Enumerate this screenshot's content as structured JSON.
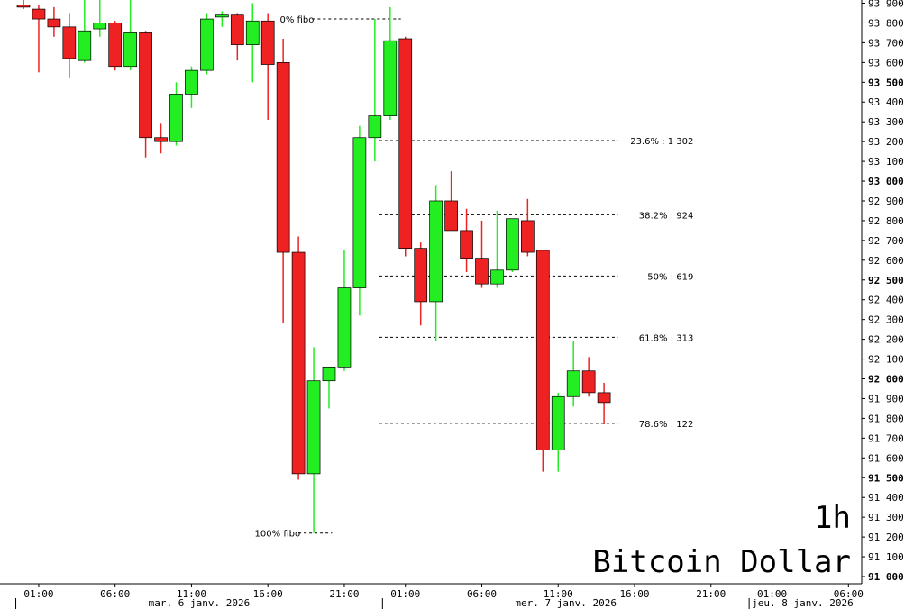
{
  "chart_data": {
    "type": "candlestick",
    "title": "Bitcoin Dollar",
    "timeframe": "1h",
    "colors": {
      "up": "#22ee22",
      "down": "#ee2222",
      "outline": "#000000"
    },
    "ylim": [
      91000,
      93900
    ],
    "grid": false,
    "y_ticks": [
      {
        "v": 93900,
        "label": "93 900",
        "bold": false
      },
      {
        "v": 93800,
        "label": "93 800",
        "bold": false
      },
      {
        "v": 93700,
        "label": "93 700",
        "bold": false
      },
      {
        "v": 93600,
        "label": "93 600",
        "bold": false
      },
      {
        "v": 93500,
        "label": "93 500",
        "bold": true
      },
      {
        "v": 93400,
        "label": "93 400",
        "bold": false
      },
      {
        "v": 93300,
        "label": "93 300",
        "bold": false
      },
      {
        "v": 93200,
        "label": "93 200",
        "bold": false
      },
      {
        "v": 93100,
        "label": "93 100",
        "bold": false
      },
      {
        "v": 93000,
        "label": "93 000",
        "bold": true
      },
      {
        "v": 92900,
        "label": "92 900",
        "bold": false
      },
      {
        "v": 92800,
        "label": "92 800",
        "bold": false
      },
      {
        "v": 92700,
        "label": "92 700",
        "bold": false
      },
      {
        "v": 92600,
        "label": "92 600",
        "bold": false
      },
      {
        "v": 92500,
        "label": "92 500",
        "bold": true
      },
      {
        "v": 92400,
        "label": "92 400",
        "bold": false
      },
      {
        "v": 92300,
        "label": "92 300",
        "bold": false
      },
      {
        "v": 92200,
        "label": "92 200",
        "bold": false
      },
      {
        "v": 92100,
        "label": "92 100",
        "bold": false
      },
      {
        "v": 92000,
        "label": "92 000",
        "bold": true
      },
      {
        "v": 91900,
        "label": "91 900",
        "bold": false
      },
      {
        "v": 91800,
        "label": "91 800",
        "bold": false
      },
      {
        "v": 91700,
        "label": "91 700",
        "bold": false
      },
      {
        "v": 91600,
        "label": "91 600",
        "bold": false
      },
      {
        "v": 91500,
        "label": "91 500",
        "bold": true
      },
      {
        "v": 91400,
        "label": "91 400",
        "bold": false
      },
      {
        "v": 91300,
        "label": "91 300",
        "bold": false
      },
      {
        "v": 91200,
        "label": "91 200",
        "bold": false
      },
      {
        "v": 91100,
        "label": "91 100",
        "bold": false
      },
      {
        "v": 91000,
        "label": "91 000",
        "bold": true
      }
    ],
    "x_ticks": [
      {
        "i": 1,
        "label": "01:00"
      },
      {
        "i": 6,
        "label": "06:00"
      },
      {
        "i": 11,
        "label": "11:00"
      },
      {
        "i": 16,
        "label": "16:00"
      },
      {
        "i": 21,
        "label": "21:00"
      },
      {
        "i": 25,
        "label": "01:00"
      },
      {
        "i": 30,
        "label": "06:00"
      },
      {
        "i": 35,
        "label": "11:00"
      },
      {
        "i": 40,
        "label": "16:00"
      },
      {
        "i": 45,
        "label": "21:00"
      },
      {
        "i": 49,
        "label": "01:00"
      },
      {
        "i": 54,
        "label": "06:00"
      }
    ],
    "day_labels": [
      {
        "i": -0.5,
        "label": "mar. 6 janv. 2026",
        "sep": true
      },
      {
        "i": 23.5,
        "label": "mer. 7 janv. 2026",
        "sep": true
      },
      {
        "i": 47.5,
        "label": "jeu. 8 janv. 2026",
        "sep": true
      }
    ],
    "candles": [
      {
        "o": 93890,
        "h": 93950,
        "l": 93870,
        "c": 93880
      },
      {
        "o": 93870,
        "h": 93890,
        "l": 93550,
        "c": 93820
      },
      {
        "o": 93820,
        "h": 93880,
        "l": 93730,
        "c": 93780
      },
      {
        "o": 93780,
        "h": 93850,
        "l": 93520,
        "c": 93620
      },
      {
        "o": 93610,
        "h": 93950,
        "l": 93600,
        "c": 93760
      },
      {
        "o": 93770,
        "h": 93950,
        "l": 93730,
        "c": 93800
      },
      {
        "o": 93800,
        "h": 93810,
        "l": 93560,
        "c": 93580
      },
      {
        "o": 93580,
        "h": 93920,
        "l": 93560,
        "c": 93750
      },
      {
        "o": 93750,
        "h": 93760,
        "l": 93120,
        "c": 93220
      },
      {
        "o": 93220,
        "h": 93290,
        "l": 93140,
        "c": 93200
      },
      {
        "o": 93200,
        "h": 93500,
        "l": 93180,
        "c": 93440
      },
      {
        "o": 93440,
        "h": 93580,
        "l": 93370,
        "c": 93560
      },
      {
        "o": 93560,
        "h": 93850,
        "l": 93540,
        "c": 93820
      },
      {
        "o": 93830,
        "h": 93860,
        "l": 93780,
        "c": 93840
      },
      {
        "o": 93840,
        "h": 93850,
        "l": 93610,
        "c": 93690
      },
      {
        "o": 93690,
        "h": 93900,
        "l": 93500,
        "c": 93810
      },
      {
        "o": 93810,
        "h": 93850,
        "l": 93310,
        "c": 93590
      },
      {
        "o": 93600,
        "h": 93720,
        "l": 92280,
        "c": 92640
      },
      {
        "o": 92640,
        "h": 92720,
        "l": 91490,
        "c": 91520
      },
      {
        "o": 91520,
        "h": 92160,
        "l": 91220,
        "c": 91990
      },
      {
        "o": 91990,
        "h": 92050,
        "l": 91850,
        "c": 92060
      },
      {
        "o": 92060,
        "h": 92650,
        "l": 92040,
        "c": 92460
      },
      {
        "o": 92460,
        "h": 93280,
        "l": 92320,
        "c": 93220
      },
      {
        "o": 93220,
        "h": 93820,
        "l": 93100,
        "c": 93330
      },
      {
        "o": 93330,
        "h": 93880,
        "l": 93310,
        "c": 93710
      },
      {
        "o": 93720,
        "h": 93730,
        "l": 92620,
        "c": 92660
      },
      {
        "o": 92660,
        "h": 92690,
        "l": 92270,
        "c": 92390
      },
      {
        "o": 92390,
        "h": 92980,
        "l": 92190,
        "c": 92900
      },
      {
        "o": 92900,
        "h": 93050,
        "l": 92750,
        "c": 92750
      },
      {
        "o": 92750,
        "h": 92860,
        "l": 92540,
        "c": 92610
      },
      {
        "o": 92610,
        "h": 92800,
        "l": 92460,
        "c": 92480
      },
      {
        "o": 92480,
        "h": 92850,
        "l": 92460,
        "c": 92550
      },
      {
        "o": 92550,
        "h": 92810,
        "l": 92540,
        "c": 92810
      },
      {
        "o": 92800,
        "h": 92910,
        "l": 92620,
        "c": 92640
      },
      {
        "o": 92650,
        "h": 92650,
        "l": 91530,
        "c": 91640
      },
      {
        "o": 91640,
        "h": 91930,
        "l": 91530,
        "c": 91910
      },
      {
        "o": 91910,
        "h": 92190,
        "l": 91860,
        "c": 92040
      },
      {
        "o": 92040,
        "h": 92110,
        "l": 91910,
        "c": 91930
      },
      {
        "o": 91930,
        "h": 91980,
        "l": 91770,
        "c": 91880
      }
    ],
    "fibo_levels": [
      {
        "label": "0% fibo",
        "value": 93820,
        "i_start": 18.9,
        "i_end": 24.7,
        "label_side": "left"
      },
      {
        "label": "23.6% : 1 302",
        "value": 93205,
        "i_start": 23.3,
        "i_end": 38.9,
        "label_side": "right"
      },
      {
        "label": "38.2% : 924",
        "value": 92830,
        "i_start": 23.3,
        "i_end": 38.9,
        "label_side": "right"
      },
      {
        "label": "50% : 619",
        "value": 92520,
        "i_start": 23.3,
        "i_end": 38.9,
        "label_side": "right"
      },
      {
        "label": "61.8% : 313",
        "value": 92210,
        "i_start": 23.3,
        "i_end": 38.9,
        "label_side": "right"
      },
      {
        "label": "78.6% : 122",
        "value": 91775,
        "i_start": 23.3,
        "i_end": 38.9,
        "label_side": "right"
      },
      {
        "label": "100% fibo",
        "value": 91220,
        "i_start": 18.0,
        "i_end": 20.2,
        "label_side": "left"
      }
    ]
  }
}
